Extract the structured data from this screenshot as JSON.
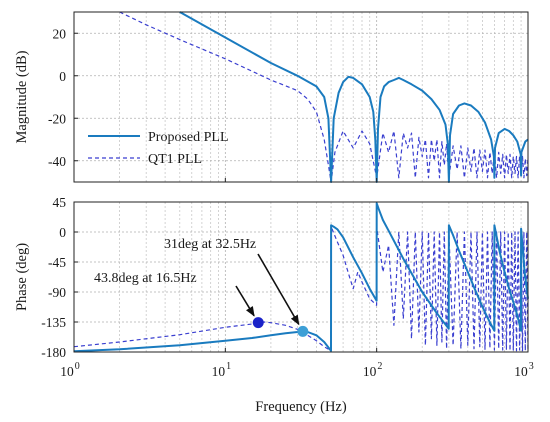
{
  "chart_data": [
    {
      "type": "line",
      "panel": "magnitude",
      "ylabel": "Magnitude (dB)",
      "xscale": "log",
      "xlim": [
        1,
        1000
      ],
      "ylim": [
        -50,
        30
      ],
      "yticks": [
        20,
        0,
        -20,
        -40
      ],
      "grid": true,
      "legend_position": "bottom-left",
      "series": [
        {
          "name": "Proposed PLL",
          "style": "solid",
          "color": "#1a7bbf",
          "x": [
            5,
            10,
            20,
            30,
            40,
            45,
            48,
            50,
            52,
            56,
            60,
            65,
            70,
            80,
            90,
            95,
            98,
            100,
            102,
            106,
            112,
            120,
            130,
            140,
            150,
            170,
            200,
            230,
            260,
            285,
            295,
            300,
            305,
            320,
            350,
            380,
            420,
            470,
            520,
            570,
            595,
            600,
            605,
            640,
            700,
            750,
            800,
            850,
            895,
            900,
            905,
            960,
            1000
          ],
          "y": [
            30,
            18,
            6,
            0,
            -5,
            -10,
            -20,
            -50,
            -20,
            -8,
            -3,
            -0.5,
            -1,
            -4,
            -10,
            -17,
            -30,
            -50,
            -25,
            -10,
            -5,
            -3,
            -2,
            -1,
            -2,
            -4,
            -7,
            -11,
            -16,
            -23,
            -32,
            -50,
            -28,
            -18,
            -14,
            -13,
            -14,
            -17,
            -22,
            -30,
            -38,
            -48,
            -34,
            -27,
            -25,
            -26,
            -28,
            -31,
            -37,
            -47,
            -36,
            -31,
            -30
          ]
        },
        {
          "name": "QT1 PLL",
          "style": "dashed",
          "color": "#3a3fd0",
          "x": [
            2,
            3,
            5,
            10,
            20,
            30,
            35,
            40,
            45,
            48,
            50,
            53,
            60,
            70,
            80,
            90,
            100,
            110,
            120,
            130,
            140,
            150,
            160,
            170,
            180,
            190,
            200,
            210,
            220,
            230,
            240,
            250,
            260,
            270,
            280,
            290,
            300,
            320,
            340,
            360,
            380,
            400,
            420,
            440,
            460,
            480,
            500,
            520,
            540,
            560,
            580,
            600,
            620,
            640,
            660,
            680,
            700,
            720,
            740,
            760,
            780,
            800,
            820,
            840,
            860,
            880,
            900,
            920,
            940,
            960,
            980,
            1000
          ],
          "y": [
            30,
            24,
            17,
            8,
            -2,
            -7,
            -11,
            -17,
            -30,
            -42,
            -50,
            -36,
            -26,
            -34,
            -26,
            -32,
            -48,
            -27,
            -36,
            -26,
            -48,
            -27,
            -34,
            -27,
            -48,
            -29,
            -38,
            -30,
            -48,
            -30,
            -40,
            -30,
            -48,
            -31,
            -42,
            -32,
            -48,
            -33,
            -44,
            -33,
            -48,
            -34,
            -45,
            -34,
            -48,
            -35,
            -45,
            -35,
            -48,
            -36,
            -46,
            -36,
            -48,
            -36,
            -46,
            -37,
            -48,
            -37,
            -46,
            -37,
            -48,
            -38,
            -46,
            -38,
            -48,
            -38,
            -47,
            -38,
            -48,
            -39,
            -47,
            -39
          ]
        }
      ]
    },
    {
      "type": "line",
      "panel": "phase",
      "ylabel": "Phase (deg)",
      "xlabel": "Frequency (Hz)",
      "xscale": "log",
      "xlim": [
        1,
        1000
      ],
      "ylim": [
        -180,
        45
      ],
      "yticks": [
        45,
        0,
        -45,
        -90,
        -135,
        -180
      ],
      "xticks": [
        1,
        10,
        100,
        1000
      ],
      "xtick_labels": [
        {
          "base": "10",
          "exp": "0"
        },
        {
          "base": "10",
          "exp": "1"
        },
        {
          "base": "10",
          "exp": "2"
        },
        {
          "base": "10",
          "exp": "3"
        }
      ],
      "grid": true,
      "series": [
        {
          "name": "Proposed PLL",
          "style": "solid",
          "color": "#1a7bbf",
          "x": [
            1,
            2,
            5,
            10,
            15,
            20,
            25,
            30,
            32.5,
            35,
            40,
            45,
            49.9,
            50,
            52,
            55,
            60,
            70,
            80,
            90,
            99.9,
            100,
            103,
            110,
            120,
            150,
            200,
            250,
            299,
            300,
            320,
            350,
            400,
            450,
            500,
            550,
            599,
            600,
            650,
            700,
            750,
            800,
            850,
            899,
            900,
            950,
            1000
          ],
          "y": [
            -179,
            -176,
            -170,
            -163,
            -159,
            -155,
            -152,
            -150,
            -149,
            -150,
            -155,
            -165,
            -178,
            10,
            8,
            4,
            -8,
            -38,
            -62,
            -85,
            -103,
            43,
            35,
            18,
            2,
            -40,
            -90,
            -122,
            -145,
            10,
            -5,
            -28,
            -60,
            -88,
            -112,
            -132,
            -148,
            10,
            -30,
            -60,
            -85,
            -105,
            -125,
            -148,
            5,
            -60,
            -100
          ]
        },
        {
          "name": "QT1 PLL",
          "style": "dashed",
          "color": "#3a3fd0",
          "x": [
            1,
            2,
            5,
            10,
            15,
            16.5,
            18,
            20,
            25,
            30,
            35,
            40,
            45,
            49.9,
            50,
            55,
            60,
            65,
            70,
            75,
            80,
            90,
            99.9,
            100,
            110,
            120,
            130,
            140,
            150,
            160,
            170,
            180,
            190,
            200,
            210,
            220,
            230,
            240,
            250,
            260,
            270,
            280,
            290,
            300,
            320,
            340,
            360,
            380,
            400,
            420,
            440,
            460,
            480,
            500,
            520,
            540,
            560,
            580,
            600,
            620,
            640,
            660,
            680,
            700,
            720,
            740,
            760,
            780,
            800,
            820,
            840,
            860,
            880,
            900,
            920,
            940,
            960,
            980,
            1000
          ],
          "y": [
            -172,
            -165,
            -154,
            -143,
            -138,
            -136,
            -135,
            -136,
            -140,
            -146,
            -155,
            -163,
            -172,
            -178,
            8,
            -15,
            -35,
            -62,
            -85,
            -60,
            -75,
            -100,
            -110,
            8,
            -60,
            -20,
            -140,
            0,
            -130,
            0,
            -160,
            0,
            -150,
            0,
            -170,
            0,
            -160,
            0,
            -170,
            0,
            -165,
            0,
            -175,
            0,
            -170,
            0,
            -175,
            0,
            -170,
            0,
            -175,
            0,
            -172,
            0,
            -176,
            0,
            -174,
            0,
            -177,
            0,
            -175,
            0,
            -177,
            0,
            -176,
            0,
            -178,
            0,
            -177,
            0,
            -178,
            0,
            -177,
            0,
            -178,
            0,
            -178,
            0,
            -178
          ]
        }
      ],
      "markers": [
        {
          "x": 16.5,
          "y": -136,
          "color": "#1a22c8",
          "series": "QT1 PLL"
        },
        {
          "x": 32.5,
          "y": -149,
          "color": "#3d9fd6",
          "series": "Proposed PLL"
        }
      ],
      "annotations": [
        {
          "text": "31deg at 32.5Hz",
          "target": {
            "x": 32.5,
            "y": -149
          }
        },
        {
          "text": "43.8deg at 16.5Hz",
          "target": {
            "x": 16.5,
            "y": -136
          }
        }
      ]
    }
  ]
}
